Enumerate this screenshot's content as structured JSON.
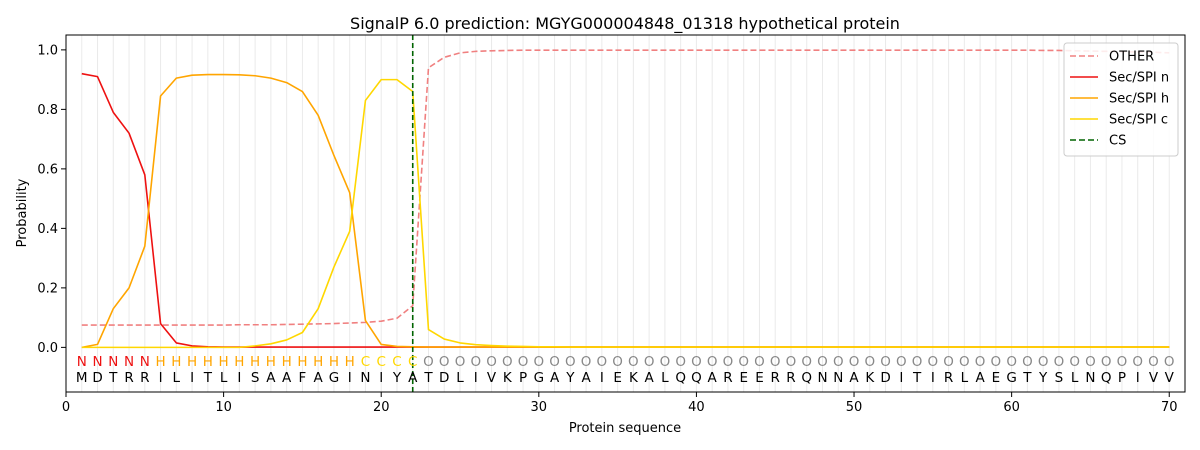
{
  "chart_data": {
    "type": "line",
    "title": "SignalP 6.0 prediction: MGYG000004848_01318 hypothetical protein",
    "xlabel": "Protein sequence",
    "ylabel": "Probability",
    "xlim": [
      0,
      71
    ],
    "ylim": [
      -0.15,
      1.05
    ],
    "x_ticks": [
      0,
      10,
      20,
      30,
      40,
      50,
      60,
      70
    ],
    "y_ticks": [
      0.0,
      0.2,
      0.4,
      0.6,
      0.8,
      1.0
    ],
    "x_tick_labels": [
      "0",
      "10",
      "20",
      "30",
      "40",
      "50",
      "60",
      "70"
    ],
    "y_tick_labels": [
      "0.0",
      "0.2",
      "0.4",
      "0.6",
      "0.8",
      "1.0"
    ],
    "legend_position": "top-right",
    "x": [
      1,
      2,
      3,
      4,
      5,
      6,
      7,
      8,
      9,
      10,
      11,
      12,
      13,
      14,
      15,
      16,
      17,
      18,
      19,
      20,
      21,
      22,
      23,
      24,
      25,
      26,
      27,
      28,
      29,
      30,
      31,
      32,
      33,
      34,
      35,
      36,
      37,
      38,
      39,
      40,
      41,
      42,
      43,
      44,
      45,
      46,
      47,
      48,
      49,
      50,
      51,
      52,
      53,
      54,
      55,
      56,
      57,
      58,
      59,
      60,
      61,
      62,
      63,
      64,
      65,
      66,
      67,
      68,
      69,
      70
    ],
    "series": [
      {
        "name": "OTHER",
        "color": "#f08080",
        "dash": "dashed",
        "values": [
          0.075,
          0.075,
          0.075,
          0.075,
          0.075,
          0.075,
          0.075,
          0.075,
          0.075,
          0.075,
          0.076,
          0.076,
          0.076,
          0.077,
          0.078,
          0.079,
          0.08,
          0.082,
          0.084,
          0.088,
          0.098,
          0.14,
          0.94,
          0.975,
          0.99,
          0.995,
          0.997,
          0.998,
          0.999,
          0.999,
          0.999,
          0.999,
          0.999,
          0.999,
          0.999,
          0.999,
          0.999,
          0.999,
          0.999,
          0.999,
          0.999,
          0.999,
          0.999,
          0.999,
          0.999,
          0.999,
          0.999,
          0.999,
          0.999,
          0.999,
          0.999,
          0.999,
          0.999,
          0.999,
          0.999,
          0.999,
          0.999,
          0.999,
          0.999,
          0.999,
          0.999,
          0.998,
          0.998,
          0.997,
          0.996,
          0.995,
          0.994,
          0.993,
          0.992,
          0.99
        ]
      },
      {
        "name": "Sec/SPI n",
        "color": "#ee1111",
        "dash": "solid",
        "values": [
          0.92,
          0.91,
          0.79,
          0.72,
          0.58,
          0.08,
          0.015,
          0.005,
          0.002,
          0.001,
          0.001,
          0.001,
          0.001,
          0.001,
          0.001,
          0.001,
          0.001,
          0.001,
          0.001,
          0.001,
          0.001,
          0.001,
          0.001,
          0.001,
          0.001,
          0.001,
          0.001,
          0.001,
          0.001,
          0.001,
          0.001,
          0.001,
          0.001,
          0.001,
          0.001,
          0.001,
          0.001,
          0.001,
          0.001,
          0.001,
          0.001,
          0.001,
          0.001,
          0.001,
          0.001,
          0.001,
          0.001,
          0.001,
          0.001,
          0.001,
          0.001,
          0.001,
          0.001,
          0.001,
          0.001,
          0.001,
          0.001,
          0.001,
          0.001,
          0.001,
          0.001,
          0.001,
          0.001,
          0.001,
          0.001,
          0.001,
          0.001,
          0.001,
          0.001,
          0.001
        ]
      },
      {
        "name": "Sec/SPI h",
        "color": "#ffa500",
        "dash": "solid",
        "values": [
          0.0,
          0.01,
          0.13,
          0.2,
          0.34,
          0.845,
          0.905,
          0.915,
          0.917,
          0.917,
          0.916,
          0.913,
          0.905,
          0.89,
          0.86,
          0.78,
          0.645,
          0.52,
          0.09,
          0.01,
          0.003,
          0.002,
          0.001,
          0.001,
          0.001,
          0.001,
          0.001,
          0.001,
          0.001,
          0.001,
          0.001,
          0.001,
          0.001,
          0.001,
          0.001,
          0.001,
          0.001,
          0.001,
          0.001,
          0.001,
          0.001,
          0.001,
          0.001,
          0.001,
          0.001,
          0.001,
          0.001,
          0.001,
          0.001,
          0.001,
          0.001,
          0.001,
          0.001,
          0.001,
          0.001,
          0.001,
          0.001,
          0.001,
          0.001,
          0.001,
          0.001,
          0.001,
          0.001,
          0.001,
          0.001,
          0.001,
          0.001,
          0.001,
          0.001,
          0.001
        ]
      },
      {
        "name": "Sec/SPI c",
        "color": "#ffd700",
        "dash": "solid",
        "values": [
          0.0,
          0.0,
          0.0,
          0.0,
          0.0,
          0.0,
          0.0,
          0.0,
          0.0,
          0.0,
          0.0,
          0.005,
          0.012,
          0.025,
          0.05,
          0.13,
          0.27,
          0.39,
          0.83,
          0.9,
          0.9,
          0.86,
          0.06,
          0.028,
          0.015,
          0.009,
          0.006,
          0.004,
          0.003,
          0.002,
          0.002,
          0.001,
          0.001,
          0.001,
          0.001,
          0.001,
          0.001,
          0.001,
          0.001,
          0.001,
          0.001,
          0.001,
          0.001,
          0.001,
          0.001,
          0.001,
          0.001,
          0.001,
          0.001,
          0.001,
          0.001,
          0.001,
          0.001,
          0.001,
          0.001,
          0.001,
          0.001,
          0.001,
          0.001,
          0.001,
          0.001,
          0.001,
          0.001,
          0.001,
          0.001,
          0.001,
          0.001,
          0.001,
          0.001,
          0.001
        ]
      }
    ],
    "cs": {
      "name": "CS",
      "x": 22,
      "color": "#006400"
    },
    "region_labels": [
      "N",
      "N",
      "N",
      "N",
      "N",
      "H",
      "H",
      "H",
      "H",
      "H",
      "H",
      "H",
      "H",
      "H",
      "H",
      "H",
      "H",
      "H",
      "C",
      "C",
      "C",
      "C",
      "O",
      "O",
      "O",
      "O",
      "O",
      "O",
      "O",
      "O",
      "O",
      "O",
      "O",
      "O",
      "O",
      "O",
      "O",
      "O",
      "O",
      "O",
      "O",
      "O",
      "O",
      "O",
      "O",
      "O",
      "O",
      "O",
      "O",
      "O",
      "O",
      "O",
      "O",
      "O",
      "O",
      "O",
      "O",
      "O",
      "O",
      "O",
      "O",
      "O",
      "O",
      "O",
      "O",
      "O",
      "O",
      "O",
      "O",
      "O"
    ],
    "region_colors": {
      "N": "#ee1111",
      "H": "#ffa500",
      "C": "#ffd700",
      "O": "#888888"
    },
    "sequence": [
      "M",
      "D",
      "T",
      "R",
      "R",
      "I",
      "L",
      "I",
      "T",
      "L",
      "I",
      "S",
      "A",
      "A",
      "F",
      "A",
      "G",
      "I",
      "N",
      "I",
      "Y",
      "A",
      "T",
      "D",
      "L",
      "I",
      "V",
      "K",
      "P",
      "G",
      "A",
      "Y",
      "A",
      "I",
      "E",
      "K",
      "A",
      "L",
      "Q",
      "Q",
      "A",
      "R",
      "E",
      "E",
      "R",
      "R",
      "Q",
      "N",
      "N",
      "A",
      "K",
      "D",
      "I",
      "T",
      "I",
      "R",
      "L",
      "A",
      "E",
      "G",
      "T",
      "Y",
      "S",
      "L",
      "N",
      "Q",
      "P",
      "I",
      "V",
      "V"
    ]
  }
}
